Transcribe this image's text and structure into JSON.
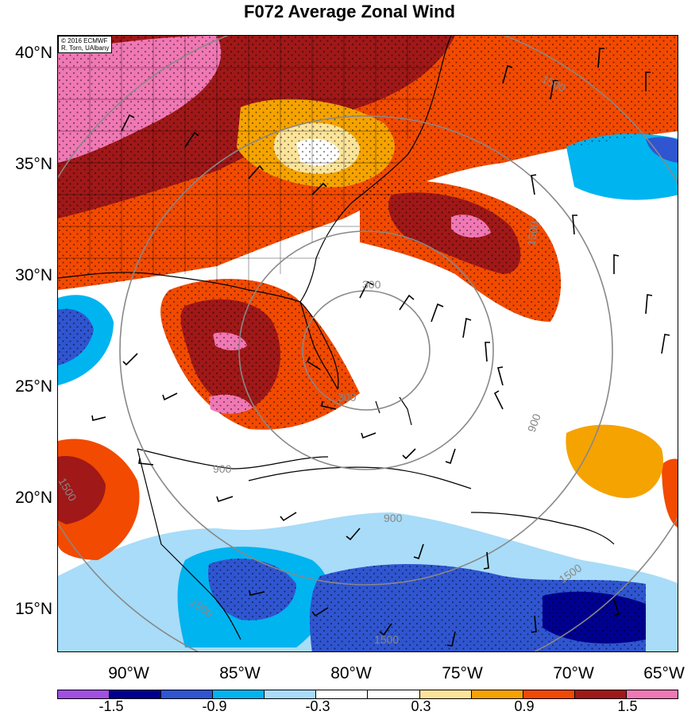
{
  "title": "F072 Average Zonal Wind",
  "credit": [
    "© 2016 ECMWF",
    "R. Torn, UAlbany"
  ],
  "latitude_labels": [
    "40°N",
    "35°N",
    "30°N",
    "25°N",
    "20°N",
    "15°N"
  ],
  "longitude_labels": [
    "90°W",
    "85°W",
    "80°W",
    "75°W",
    "70°W",
    "65°W"
  ],
  "range_ring_labels": [
    "300",
    "300",
    "900",
    "900",
    "900",
    "1500",
    "1500",
    "1500",
    "1500",
    "1500",
    "1500"
  ],
  "colorbar": {
    "labels": [
      "-1.5",
      "-0.9",
      "-0.3",
      "0.3",
      "0.9",
      "1.5"
    ],
    "colors": [
      "#a14fe0",
      "#000090",
      "#2f55d0",
      "#00b4f0",
      "#a8dcf8",
      "#ffffff",
      "#ffffff",
      "#fbe49a",
      "#f5a300",
      "#f24a00",
      "#a01818",
      "#f078b4"
    ]
  }
}
